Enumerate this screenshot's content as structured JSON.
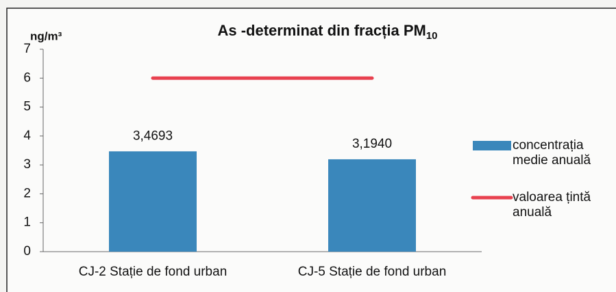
{
  "chart_data": {
    "type": "bar",
    "title": "As -determinat din fracția PM",
    "title_subscript": "10",
    "y_label": "ng/m³",
    "categories": [
      "CJ-2 Stație de fond urban",
      "CJ-5 Stație de fond urban"
    ],
    "series": [
      {
        "name": "concentrația medie anuală",
        "type": "bar",
        "color": "#3a87bb",
        "values": [
          3.4693,
          3.194
        ],
        "value_labels": [
          "3,4693",
          "3,1940"
        ]
      },
      {
        "name": "valoarea țintă anuală",
        "type": "line",
        "color": "#e8414f",
        "values": [
          6,
          6
        ]
      }
    ],
    "ylim": [
      0,
      7
    ],
    "yticks": [
      0,
      1,
      2,
      3,
      4,
      5,
      6,
      7
    ],
    "legend": "right"
  }
}
